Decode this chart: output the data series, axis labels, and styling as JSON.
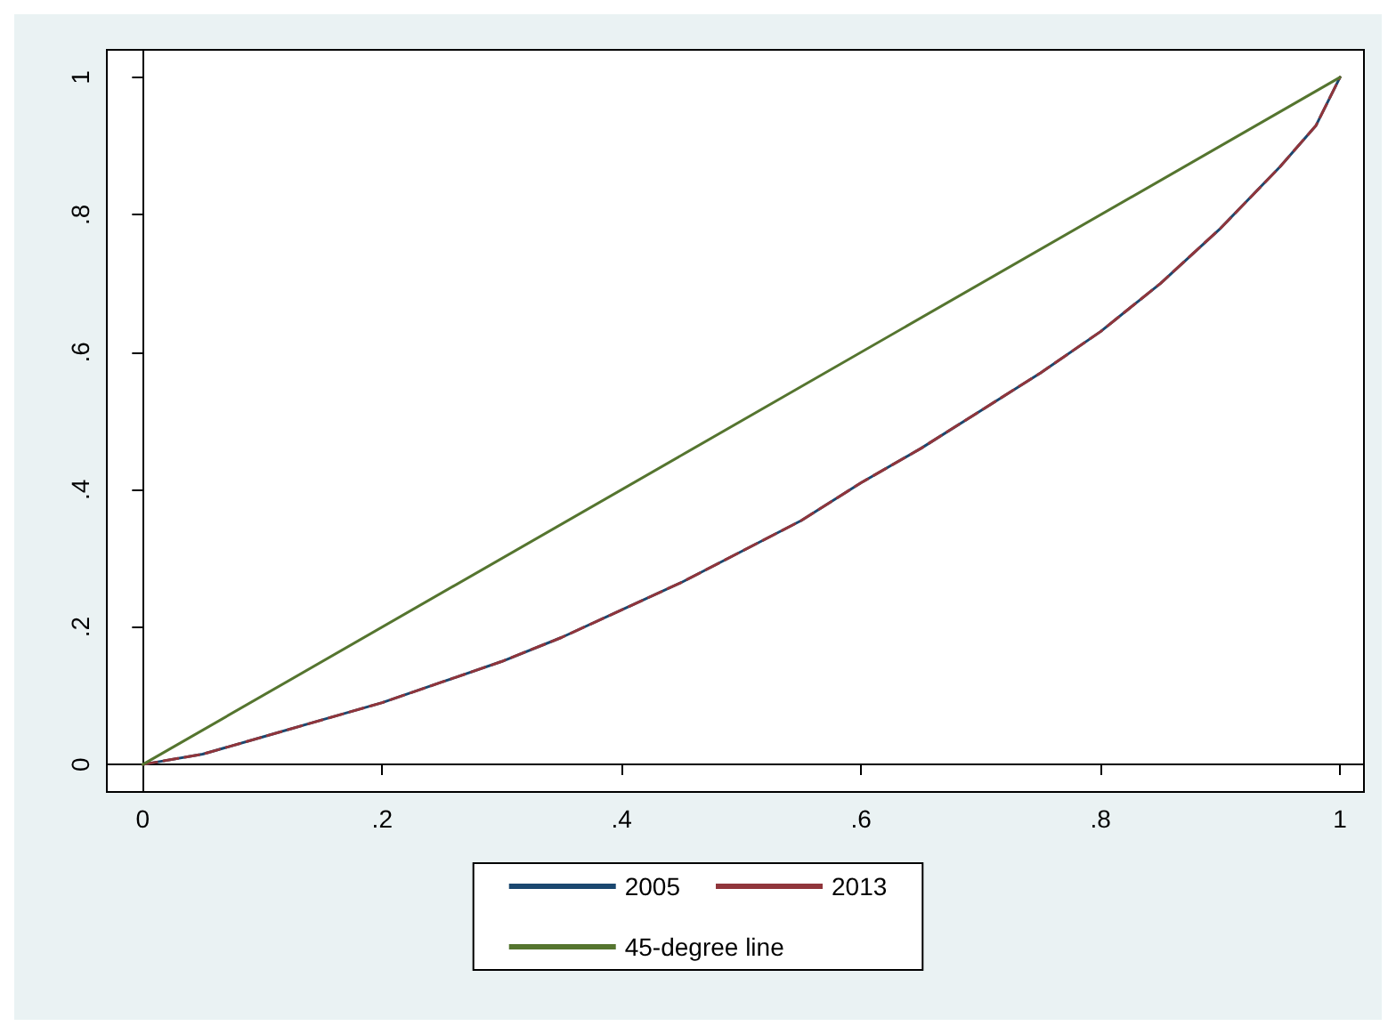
{
  "chart_data": {
    "type": "line",
    "xlim": [
      -0.03,
      1.02
    ],
    "ylim": [
      -0.04,
      1.04
    ],
    "xticks": [
      0,
      {
        "value": 0.2,
        "label": ".2"
      },
      {
        "value": 0.4,
        "label": ".4"
      },
      {
        "value": 0.6,
        "label": ".6"
      },
      {
        "value": 0.8,
        "label": ".8"
      },
      1
    ],
    "yticks": [
      0,
      {
        "value": 0.2,
        "label": ".2"
      },
      {
        "value": 0.4,
        "label": ".4"
      },
      {
        "value": 0.6,
        "label": ".6"
      },
      {
        "value": 0.8,
        "label": ".8"
      },
      1
    ],
    "legend": "bottom",
    "series": [
      {
        "name": "2005",
        "color": "#1a476f",
        "line_style": "solid",
        "x": [
          0,
          0.05,
          0.1,
          0.15,
          0.2,
          0.25,
          0.3,
          0.35,
          0.4,
          0.45,
          0.5,
          0.55,
          0.6,
          0.65,
          0.7,
          0.75,
          0.8,
          0.85,
          0.9,
          0.95,
          0.98,
          1
        ],
        "values": [
          0,
          0.015,
          0.04,
          0.065,
          0.09,
          0.12,
          0.15,
          0.185,
          0.225,
          0.265,
          0.31,
          0.355,
          0.41,
          0.46,
          0.515,
          0.57,
          0.63,
          0.7,
          0.78,
          0.87,
          0.93,
          1
        ]
      },
      {
        "name": "2013",
        "color": "#90353b",
        "line_style": "dashed",
        "x": [
          0,
          0.05,
          0.1,
          0.15,
          0.2,
          0.25,
          0.3,
          0.35,
          0.4,
          0.45,
          0.5,
          0.55,
          0.6,
          0.65,
          0.7,
          0.75,
          0.8,
          0.85,
          0.9,
          0.95,
          0.98,
          1
        ],
        "values": [
          0,
          0.015,
          0.04,
          0.065,
          0.09,
          0.12,
          0.15,
          0.185,
          0.225,
          0.265,
          0.31,
          0.355,
          0.41,
          0.46,
          0.515,
          0.57,
          0.63,
          0.7,
          0.78,
          0.87,
          0.93,
          1
        ]
      },
      {
        "name": "45-degree line",
        "color": "#55752f",
        "line_style": "solid",
        "x": [
          0,
          1
        ],
        "values": [
          0,
          1
        ]
      }
    ]
  }
}
